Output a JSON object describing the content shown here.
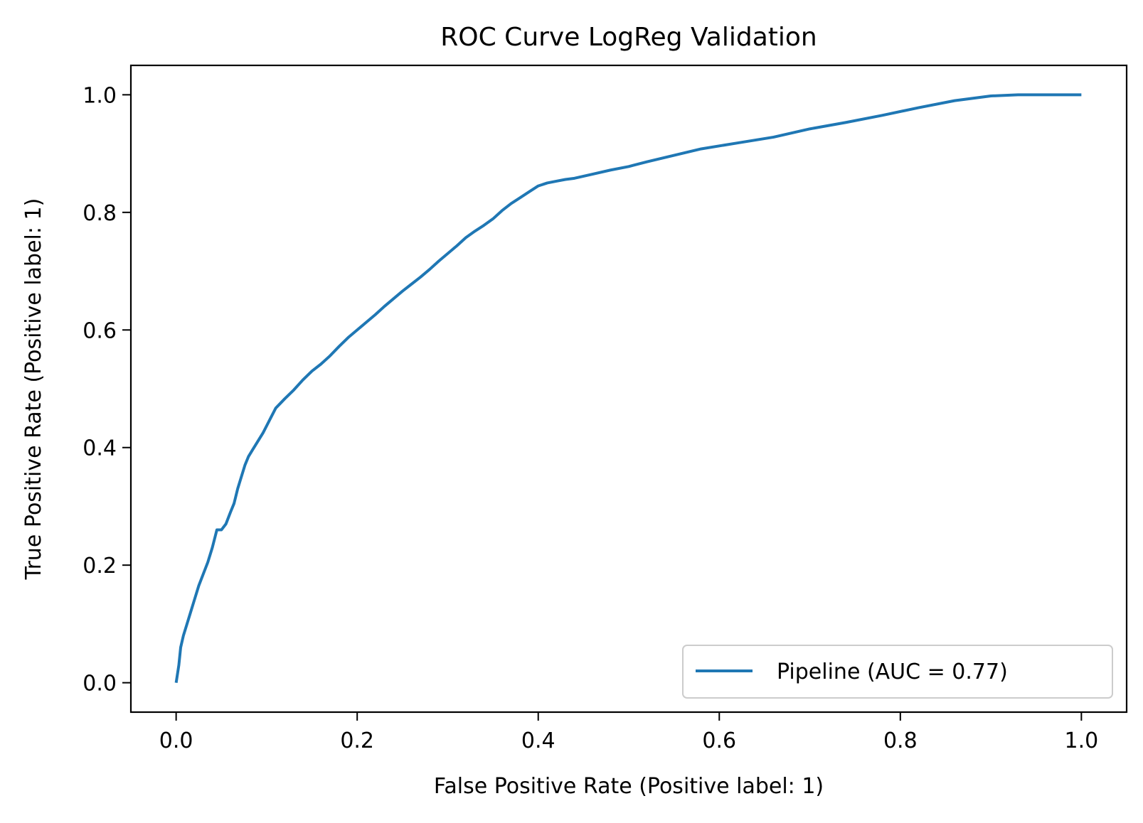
{
  "chart_data": {
    "type": "line",
    "title": "ROC Curve LogReg Validation",
    "xlabel": "False Positive Rate (Positive label: 1)",
    "ylabel": "True Positive Rate (Positive label: 1)",
    "xlim": [
      -0.05,
      1.05
    ],
    "ylim": [
      -0.05,
      1.05
    ],
    "xticks": [
      0.0,
      0.2,
      0.4,
      0.6,
      0.8,
      1.0
    ],
    "yticks": [
      0.0,
      0.2,
      0.4,
      0.6,
      0.8,
      1.0
    ],
    "xtick_labels": [
      "0.0",
      "0.2",
      "0.4",
      "0.6",
      "0.8",
      "1.0"
    ],
    "ytick_labels": [
      "0.0",
      "0.2",
      "0.4",
      "0.6",
      "0.8",
      "1.0"
    ],
    "grid": false,
    "legend_position": "lower-right",
    "series": [
      {
        "name": "Pipeline (AUC = 0.77)",
        "color": "#1f77b4",
        "x": [
          0.0,
          0.003,
          0.005,
          0.008,
          0.012,
          0.016,
          0.02,
          0.025,
          0.03,
          0.035,
          0.04,
          0.045,
          0.05,
          0.055,
          0.06,
          0.064,
          0.068,
          0.072,
          0.076,
          0.08,
          0.084,
          0.088,
          0.092,
          0.096,
          0.1,
          0.105,
          0.11,
          0.115,
          0.12,
          0.13,
          0.14,
          0.15,
          0.16,
          0.17,
          0.18,
          0.19,
          0.2,
          0.21,
          0.22,
          0.23,
          0.24,
          0.25,
          0.26,
          0.27,
          0.28,
          0.29,
          0.3,
          0.31,
          0.32,
          0.33,
          0.34,
          0.35,
          0.36,
          0.37,
          0.38,
          0.39,
          0.4,
          0.41,
          0.42,
          0.43,
          0.44,
          0.46,
          0.48,
          0.5,
          0.52,
          0.55,
          0.58,
          0.62,
          0.66,
          0.7,
          0.74,
          0.78,
          0.82,
          0.86,
          0.9,
          0.93,
          1.0
        ],
        "y": [
          0.0,
          0.03,
          0.06,
          0.08,
          0.1,
          0.12,
          0.14,
          0.165,
          0.185,
          0.205,
          0.23,
          0.26,
          0.26,
          0.27,
          0.29,
          0.305,
          0.33,
          0.35,
          0.37,
          0.385,
          0.395,
          0.405,
          0.415,
          0.425,
          0.437,
          0.452,
          0.467,
          0.475,
          0.483,
          0.498,
          0.515,
          0.53,
          0.542,
          0.556,
          0.572,
          0.587,
          0.6,
          0.613,
          0.626,
          0.64,
          0.653,
          0.666,
          0.678,
          0.69,
          0.703,
          0.717,
          0.73,
          0.743,
          0.757,
          0.768,
          0.778,
          0.789,
          0.803,
          0.815,
          0.825,
          0.835,
          0.845,
          0.85,
          0.853,
          0.856,
          0.858,
          0.865,
          0.872,
          0.878,
          0.886,
          0.897,
          0.908,
          0.918,
          0.928,
          0.942,
          0.953,
          0.965,
          0.978,
          0.99,
          0.998,
          1.0,
          1.0
        ]
      }
    ]
  }
}
